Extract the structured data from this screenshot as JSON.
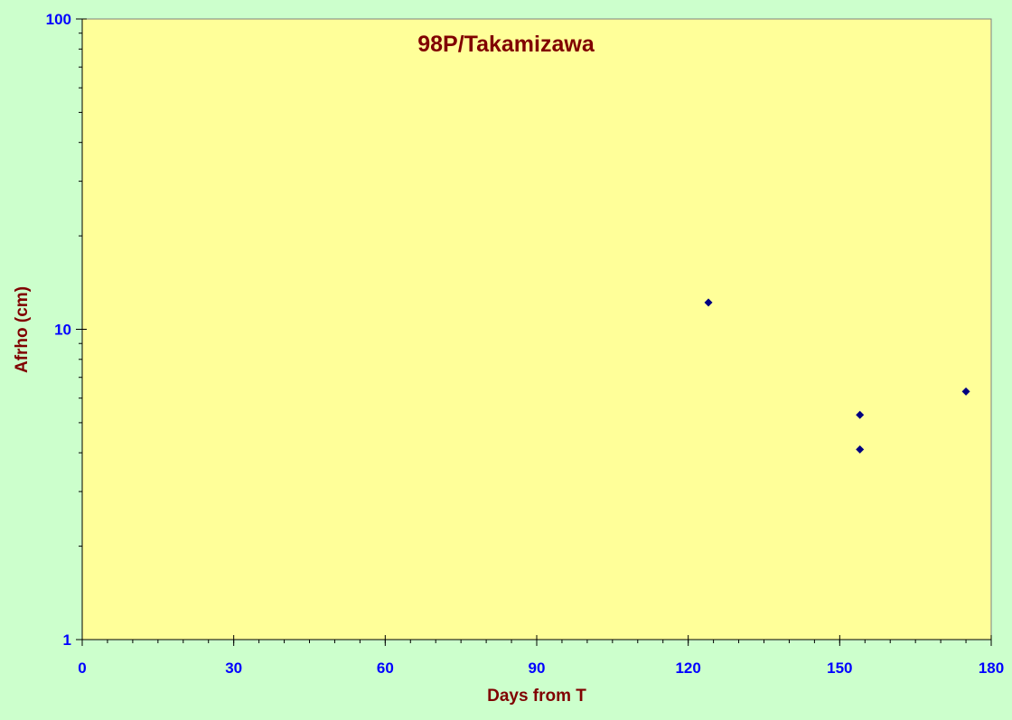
{
  "chart_data": {
    "type": "scatter",
    "title": "98P/Takamizawa",
    "xlabel": "Days from T",
    "ylabel": "Afrho (cm)",
    "xlim": [
      0,
      180
    ],
    "ylim": [
      1,
      100
    ],
    "yscale": "log",
    "xticks": [
      0,
      30,
      60,
      90,
      120,
      150,
      180
    ],
    "xtick_labels": [
      "0",
      "30",
      "60",
      "90",
      "120",
      "150",
      "180"
    ],
    "yticks": [
      1,
      10,
      100
    ],
    "ytick_labels": [
      "1",
      "10",
      "100"
    ],
    "grid": false,
    "legend": "none",
    "series": [
      {
        "x": [
          124,
          154,
          154,
          175
        ],
        "y": [
          12.2,
          5.3,
          4.1,
          6.3
        ]
      }
    ],
    "colors": {
      "background": "#ccffcc",
      "plot_area": "#ffff99",
      "marker": "#000080",
      "title": "#800000",
      "axis_label": "#800000",
      "tick_label": "#0000ff",
      "axis_line": "#000000"
    }
  }
}
